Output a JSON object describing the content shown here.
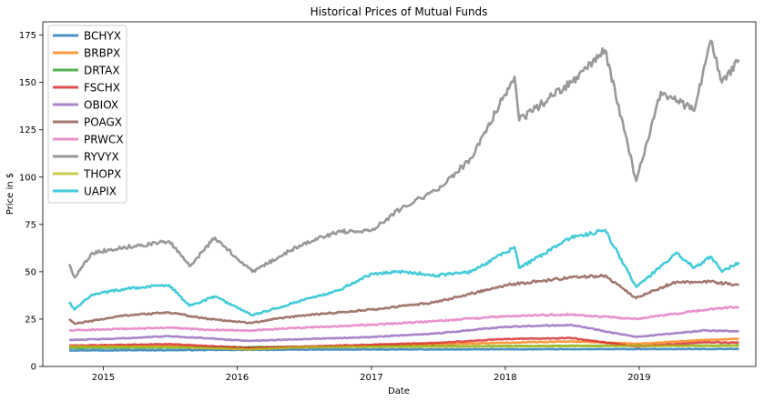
{
  "chart_data": {
    "type": "line",
    "title": "Historical Prices of Mutual Funds",
    "xlabel": "Date",
    "ylabel": "Price in $",
    "xlim": [
      "2014-07-20",
      "2019-11-15"
    ],
    "ylim": [
      0,
      182
    ],
    "x_ticks": [
      "2015",
      "2016",
      "2017",
      "2018",
      "2019"
    ],
    "y_ticks": [
      0,
      25,
      50,
      75,
      100,
      125,
      150,
      175
    ],
    "grid": false,
    "legend_position": "top-left",
    "series": [
      {
        "name": "BCHYX",
        "color": "#1f77b4",
        "x": [
          "2014-09-30",
          "2015-06-30",
          "2016-06-30",
          "2017-06-30",
          "2018-06-30",
          "2019-06-30",
          "2019-09-30"
        ],
        "values": [
          8.5,
          8.6,
          8.9,
          9.0,
          9.1,
          9.2,
          9.3
        ]
      },
      {
        "name": "BRBPX",
        "color": "#ff7f0e",
        "x": [
          "2014-09-30",
          "2015-06-30",
          "2016-02-01",
          "2016-06-30",
          "2017-01-02",
          "2017-06-30",
          "2018-01-02",
          "2018-06-30",
          "2019-01-02",
          "2019-06-30",
          "2019-09-30"
        ],
        "values": [
          10.5,
          10.8,
          9.5,
          10.2,
          11.0,
          11.8,
          12.5,
          13.2,
          12.0,
          14.0,
          14.5
        ]
      },
      {
        "name": "DRTAX",
        "color": "#2ca02c",
        "x": [
          "2014-09-30",
          "2015-06-30",
          "2016-06-30",
          "2017-06-30",
          "2018-06-30",
          "2019-06-30",
          "2019-09-30"
        ],
        "values": [
          9.8,
          10.0,
          10.3,
          10.6,
          10.9,
          11.0,
          11.1
        ]
      },
      {
        "name": "FSCHX",
        "color": "#d62728",
        "x": [
          "2014-09-30",
          "2015-06-30",
          "2016-02-01",
          "2016-06-30",
          "2017-01-02",
          "2017-06-30",
          "2018-01-02",
          "2018-06-30",
          "2018-12-24",
          "2019-06-30",
          "2019-09-30"
        ],
        "values": [
          11.0,
          11.8,
          9.8,
          10.5,
          11.5,
          12.5,
          14.5,
          15.0,
          10.5,
          12.8,
          12.5
        ]
      },
      {
        "name": "OBIOX",
        "color": "#9467bd",
        "x": [
          "2014-09-30",
          "2015-01-15",
          "2015-06-30",
          "2015-09-30",
          "2016-02-01",
          "2016-06-30",
          "2017-01-02",
          "2017-06-30",
          "2018-01-02",
          "2018-06-30",
          "2018-12-24",
          "2019-06-30",
          "2019-09-30"
        ],
        "values": [
          14.0,
          14.5,
          16.0,
          15.0,
          13.5,
          14.5,
          15.5,
          17.5,
          21.0,
          22.0,
          15.5,
          19.0,
          18.5
        ]
      },
      {
        "name": "POAGX",
        "color": "#8c564b",
        "x": [
          "2014-09-30",
          "2014-10-15",
          "2015-03-01",
          "2015-06-30",
          "2015-09-30",
          "2016-02-01",
          "2016-06-30",
          "2017-01-02",
          "2017-06-30",
          "2018-01-02",
          "2018-06-30",
          "2018-09-30",
          "2018-12-24",
          "2019-04-01",
          "2019-06-30",
          "2019-09-30"
        ],
        "values": [
          25.0,
          22.5,
          27.0,
          28.5,
          25.5,
          23.0,
          27.0,
          30.0,
          34.0,
          43.0,
          47.0,
          48.0,
          36.0,
          44.0,
          45.0,
          43.0
        ]
      },
      {
        "name": "PRWCX",
        "color": "#e377c2",
        "x": [
          "2014-09-30",
          "2015-06-30",
          "2015-09-30",
          "2016-02-01",
          "2016-06-30",
          "2017-01-02",
          "2017-06-30",
          "2018-01-02",
          "2018-06-30",
          "2018-12-24",
          "2019-06-30",
          "2019-09-30"
        ],
        "values": [
          19.0,
          20.5,
          19.5,
          19.0,
          20.5,
          22.0,
          24.0,
          26.5,
          27.5,
          25.0,
          30.0,
          31.5
        ]
      },
      {
        "name": "RYVYX",
        "color": "#7f7f7f",
        "x": [
          "2014-09-30",
          "2014-10-15",
          "2014-12-01",
          "2015-03-01",
          "2015-06-30",
          "2015-08-24",
          "2015-11-01",
          "2016-02-11",
          "2016-06-30",
          "2016-09-30",
          "2017-01-02",
          "2017-04-01",
          "2017-06-30",
          "2017-09-30",
          "2018-01-26",
          "2018-02-08",
          "2018-06-30",
          "2018-09-30",
          "2018-12-24",
          "2019-03-01",
          "2019-05-31",
          "2019-07-15",
          "2019-08-15",
          "2019-09-30"
        ],
        "values": [
          54,
          47,
          60,
          63,
          66,
          53,
          68,
          50,
          65,
          71,
          72,
          85,
          93,
          110,
          153,
          130,
          150,
          167,
          98,
          145,
          135,
          172,
          150,
          162
        ]
      },
      {
        "name": "THOPX",
        "color": "#bcbd22",
        "x": [
          "2014-09-30",
          "2015-06-30",
          "2016-02-01",
          "2016-06-30",
          "2017-06-30",
          "2018-06-30",
          "2019-06-30",
          "2019-09-30"
        ],
        "values": [
          10.5,
          10.3,
          9.0,
          10.2,
          10.5,
          10.8,
          10.9,
          11.0
        ]
      },
      {
        "name": "UAPIX",
        "color": "#17becf",
        "x": [
          "2014-09-30",
          "2014-10-15",
          "2014-12-01",
          "2015-03-01",
          "2015-06-30",
          "2015-08-24",
          "2015-11-01",
          "2016-02-11",
          "2016-06-30",
          "2016-09-30",
          "2017-01-02",
          "2017-04-01",
          "2017-06-30",
          "2017-09-30",
          "2018-01-26",
          "2018-02-08",
          "2018-06-30",
          "2018-09-30",
          "2018-12-24",
          "2019-04-15",
          "2019-05-31",
          "2019-07-15",
          "2019-08-15",
          "2019-09-30"
        ],
        "values": [
          34,
          30,
          38,
          41,
          43,
          32,
          37,
          27,
          35,
          40,
          49,
          50,
          48,
          50,
          63,
          52,
          68,
          72,
          42,
          60,
          52,
          58,
          50,
          55
        ]
      }
    ]
  }
}
